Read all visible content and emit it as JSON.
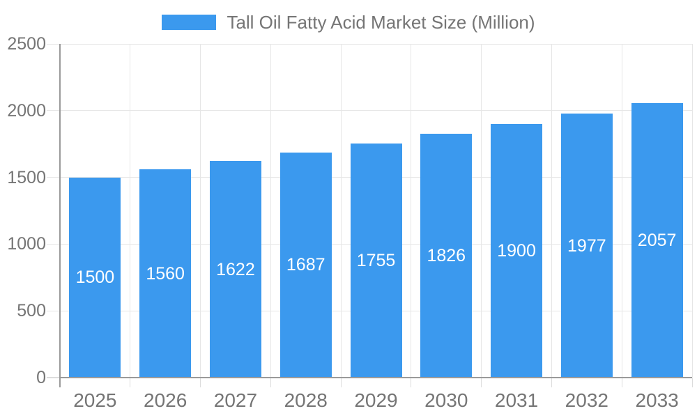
{
  "chart_data": {
    "type": "bar",
    "title": "",
    "legend": {
      "label": "Tall Oil Fatty Acid Market Size (Million)",
      "position": "top"
    },
    "categories": [
      "2025",
      "2026",
      "2027",
      "2028",
      "2029",
      "2030",
      "2031",
      "2032",
      "2033"
    ],
    "series": [
      {
        "name": "Tall Oil Fatty Acid Market Size (Million)",
        "values": [
          1500,
          1560,
          1622,
          1687,
          1755,
          1826,
          1900,
          1977,
          2057
        ]
      }
    ],
    "xlabel": "",
    "ylabel": "",
    "ylim": [
      0,
      2500
    ],
    "yticks": [
      0,
      500,
      1000,
      1500,
      2000,
      2500
    ],
    "grid": true,
    "value_labels": "inside-center",
    "colors": {
      "bar": "#3B99EE",
      "axis_line": "#9A9A9A",
      "grid_line": "#E6E6E6",
      "tick_line": "#DCDCDC",
      "axis_text": "#757575",
      "legend_text": "#757575",
      "value_label_text": "#FFFFFF",
      "background": "#FFFFFF"
    }
  }
}
